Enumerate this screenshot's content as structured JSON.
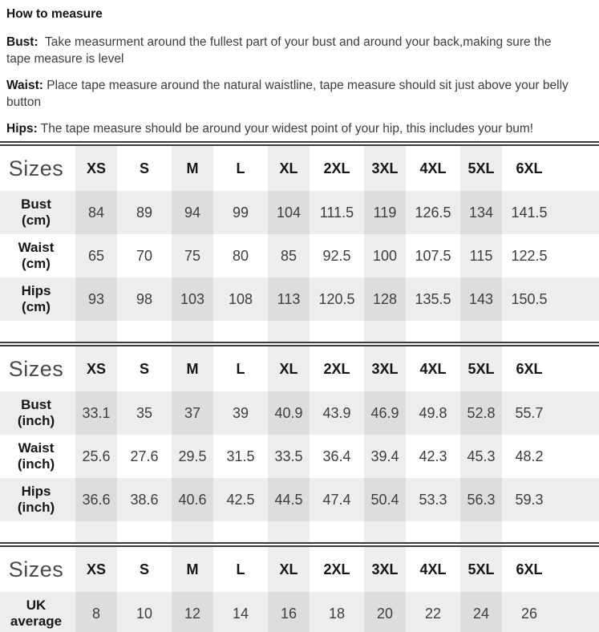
{
  "howto": {
    "title": "How to measure",
    "items": [
      {
        "label": "Bust:",
        "text": "  Take measurment around the fullest part of your bust and around your back,making sure the\ntape measure is level"
      },
      {
        "label": "Waist:",
        "text": " Place tape measure around the natural waistline, tape measure should sit just above your belly\nbutton"
      },
      {
        "label": "Hips:",
        "text": " The tape measure should be around your widest point of your hip, this includes your bum!"
      }
    ]
  },
  "size_columns": [
    "XS",
    "S",
    "M",
    "L",
    "XL",
    "2XL",
    "3XL",
    "4XL",
    "5XL",
    "6XL"
  ],
  "tables": [
    {
      "id": "cm",
      "corner_label": "Sizes",
      "rows": [
        {
          "label": "Bust",
          "unit": "(cm)",
          "shaded": true,
          "values": [
            "84",
            "89",
            "94",
            "99",
            "104",
            "111.5",
            "119",
            "126.5",
            "134",
            "141.5"
          ]
        },
        {
          "label": "Waist",
          "unit": "(cm)",
          "shaded": false,
          "values": [
            "65",
            "70",
            "75",
            "80",
            "85",
            "92.5",
            "100",
            "107.5",
            "115",
            "122.5"
          ]
        },
        {
          "label": "Hips",
          "unit": "(cm)",
          "shaded": true,
          "values": [
            "93",
            "98",
            "103",
            "108",
            "113",
            "120.5",
            "128",
            "135.5",
            "143",
            "150.5"
          ]
        }
      ]
    },
    {
      "id": "inch",
      "corner_label": "Sizes",
      "rows": [
        {
          "label": "Bust",
          "unit": "(inch)",
          "shaded": true,
          "values": [
            "33.1",
            "35",
            "37",
            "39",
            "40.9",
            "43.9",
            "46.9",
            "49.8",
            "52.8",
            "55.7"
          ]
        },
        {
          "label": "Waist",
          "unit": "(inch)",
          "shaded": false,
          "values": [
            "25.6",
            "27.6",
            "29.5",
            "31.5",
            "33.5",
            "36.4",
            "39.4",
            "42.3",
            "45.3",
            "48.2"
          ]
        },
        {
          "label": "Hips",
          "unit": "(inch)",
          "shaded": true,
          "values": [
            "36.6",
            "38.6",
            "40.6",
            "42.5",
            "44.5",
            "47.4",
            "50.4",
            "53.3",
            "56.3",
            "59.3"
          ]
        }
      ]
    },
    {
      "id": "uk-average",
      "corner_label": "Sizes",
      "rows": [
        {
          "label": "UK",
          "unit": "average",
          "shaded": true,
          "values": [
            "8",
            "10",
            "12",
            "14",
            "16",
            "18",
            "20",
            "22",
            "24",
            "26"
          ]
        }
      ]
    }
  ],
  "colors": {
    "rule": "#3c3c3c",
    "shade_single": "#ededed",
    "shade_double": "#e1e1e1",
    "text_dark": "#141414",
    "text_body": "#3d3d3d"
  }
}
